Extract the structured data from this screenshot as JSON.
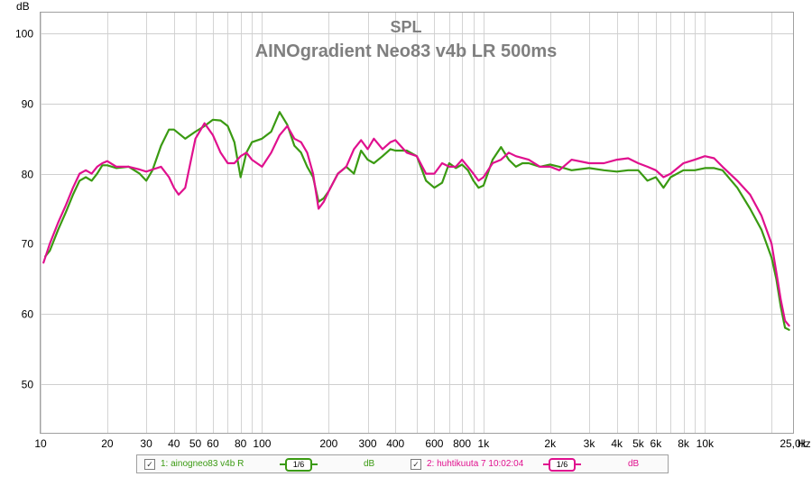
{
  "chart_data": {
    "type": "line",
    "title": "SPL",
    "subtitle": "AINOgradient Neo83 v4b LR 500ms",
    "ylabel": "dB",
    "xlabel": "Hz",
    "x_scale": "log",
    "xlim": [
      10,
      25000
    ],
    "ylim": [
      43,
      103
    ],
    "grid": true,
    "y_ticks": [
      50,
      60,
      70,
      80,
      90,
      100
    ],
    "x_ticks": [
      {
        "value": 10,
        "label": "10"
      },
      {
        "value": 20,
        "label": "20"
      },
      {
        "value": 30,
        "label": "30"
      },
      {
        "value": 40,
        "label": "40"
      },
      {
        "value": 50,
        "label": "50"
      },
      {
        "value": 60,
        "label": "60"
      },
      {
        "value": 80,
        "label": "80"
      },
      {
        "value": 100,
        "label": "100"
      },
      {
        "value": 200,
        "label": "200"
      },
      {
        "value": 300,
        "label": "300"
      },
      {
        "value": 400,
        "label": "400"
      },
      {
        "value": 600,
        "label": "600"
      },
      {
        "value": 800,
        "label": "800"
      },
      {
        "value": 1000,
        "label": "1k"
      },
      {
        "value": 2000,
        "label": "2k"
      },
      {
        "value": 3000,
        "label": "3k"
      },
      {
        "value": 4000,
        "label": "4k"
      },
      {
        "value": 5000,
        "label": "5k"
      },
      {
        "value": 6000,
        "label": "6k"
      },
      {
        "value": 8000,
        "label": "8k"
      },
      {
        "value": 10000,
        "label": "10k"
      },
      {
        "value": 25000,
        "label": "25,0k"
      }
    ],
    "series": [
      {
        "name": "1: ainogneo83 v4b R",
        "color": "#3a9a12",
        "points": [
          [
            10.5,
            68.2
          ],
          [
            11,
            69
          ],
          [
            12,
            72
          ],
          [
            13,
            74.5
          ],
          [
            14,
            77
          ],
          [
            15,
            79
          ],
          [
            16,
            79.5
          ],
          [
            17,
            79
          ],
          [
            18,
            80
          ],
          [
            19,
            81.2
          ],
          [
            20,
            81.2
          ],
          [
            22,
            80.8
          ],
          [
            25,
            81
          ],
          [
            28,
            80
          ],
          [
            30,
            79
          ],
          [
            32,
            80.5
          ],
          [
            35,
            84
          ],
          [
            38,
            86.3
          ],
          [
            40,
            86.3
          ],
          [
            45,
            85
          ],
          [
            50,
            86
          ],
          [
            55,
            86.8
          ],
          [
            60,
            87.7
          ],
          [
            65,
            87.6
          ],
          [
            70,
            86.8
          ],
          [
            75,
            84.5
          ],
          [
            80,
            79.5
          ],
          [
            85,
            83
          ],
          [
            90,
            84.5
          ],
          [
            100,
            85
          ],
          [
            110,
            86
          ],
          [
            120,
            88.8
          ],
          [
            130,
            87
          ],
          [
            140,
            84
          ],
          [
            150,
            83
          ],
          [
            160,
            81
          ],
          [
            170,
            79.5
          ],
          [
            180,
            76
          ],
          [
            190,
            76.5
          ],
          [
            200,
            77.5
          ],
          [
            220,
            80
          ],
          [
            240,
            81
          ],
          [
            260,
            80
          ],
          [
            280,
            83.3
          ],
          [
            300,
            82
          ],
          [
            320,
            81.5
          ],
          [
            350,
            82.5
          ],
          [
            380,
            83.5
          ],
          [
            400,
            83.3
          ],
          [
            450,
            83.3
          ],
          [
            500,
            82.5
          ],
          [
            550,
            79
          ],
          [
            600,
            78
          ],
          [
            650,
            78.7
          ],
          [
            700,
            81.5
          ],
          [
            750,
            80.8
          ],
          [
            800,
            81.3
          ],
          [
            850,
            80.5
          ],
          [
            900,
            79
          ],
          [
            950,
            78
          ],
          [
            1000,
            78.3
          ],
          [
            1100,
            82
          ],
          [
            1200,
            83.8
          ],
          [
            1300,
            82
          ],
          [
            1400,
            81
          ],
          [
            1500,
            81.5
          ],
          [
            1600,
            81.5
          ],
          [
            1800,
            81
          ],
          [
            2000,
            81.3
          ],
          [
            2200,
            81
          ],
          [
            2500,
            80.5
          ],
          [
            3000,
            80.8
          ],
          [
            3500,
            80.5
          ],
          [
            4000,
            80.3
          ],
          [
            4500,
            80.5
          ],
          [
            5000,
            80.5
          ],
          [
            5500,
            79
          ],
          [
            6000,
            79.5
          ],
          [
            6500,
            78
          ],
          [
            7000,
            79.5
          ],
          [
            8000,
            80.5
          ],
          [
            9000,
            80.5
          ],
          [
            10000,
            80.8
          ],
          [
            11000,
            80.8
          ],
          [
            12000,
            80.5
          ],
          [
            14000,
            78
          ],
          [
            16000,
            75
          ],
          [
            18000,
            72
          ],
          [
            20000,
            68
          ],
          [
            21000,
            65
          ],
          [
            22000,
            61
          ],
          [
            23000,
            58
          ],
          [
            24000,
            57.7
          ]
        ]
      },
      {
        "name": "2: huhtikuuta 7 10:02:04",
        "color": "#e0108e",
        "points": [
          [
            10.3,
            67.3
          ],
          [
            11,
            70
          ],
          [
            12,
            73
          ],
          [
            13,
            75.5
          ],
          [
            14,
            78
          ],
          [
            15,
            80
          ],
          [
            16,
            80.5
          ],
          [
            17,
            80
          ],
          [
            18,
            81
          ],
          [
            19,
            81.5
          ],
          [
            20,
            81.8
          ],
          [
            22,
            81
          ],
          [
            25,
            81
          ],
          [
            28,
            80.6
          ],
          [
            30,
            80.3
          ],
          [
            32,
            80.6
          ],
          [
            35,
            81
          ],
          [
            38,
            79.5
          ],
          [
            40,
            78
          ],
          [
            42,
            77
          ],
          [
            45,
            78
          ],
          [
            50,
            85
          ],
          [
            55,
            87.2
          ],
          [
            60,
            85.5
          ],
          [
            65,
            83
          ],
          [
            70,
            81.5
          ],
          [
            75,
            81.5
          ],
          [
            80,
            82.5
          ],
          [
            85,
            83
          ],
          [
            90,
            82
          ],
          [
            100,
            81
          ],
          [
            110,
            83
          ],
          [
            120,
            85.5
          ],
          [
            130,
            86.8
          ],
          [
            140,
            85
          ],
          [
            150,
            84.5
          ],
          [
            160,
            83
          ],
          [
            170,
            80
          ],
          [
            180,
            75
          ],
          [
            190,
            76
          ],
          [
            200,
            77.5
          ],
          [
            220,
            80
          ],
          [
            240,
            81
          ],
          [
            260,
            83.5
          ],
          [
            280,
            84.8
          ],
          [
            300,
            83.5
          ],
          [
            320,
            85
          ],
          [
            350,
            83.5
          ],
          [
            380,
            84.5
          ],
          [
            400,
            84.8
          ],
          [
            450,
            83
          ],
          [
            500,
            82.5
          ],
          [
            550,
            80
          ],
          [
            600,
            80
          ],
          [
            650,
            81.5
          ],
          [
            700,
            81
          ],
          [
            750,
            81
          ],
          [
            800,
            82
          ],
          [
            850,
            81
          ],
          [
            900,
            80
          ],
          [
            950,
            79
          ],
          [
            1000,
            79.5
          ],
          [
            1100,
            81.5
          ],
          [
            1200,
            82
          ],
          [
            1300,
            83
          ],
          [
            1400,
            82.5
          ],
          [
            1600,
            82
          ],
          [
            1800,
            81
          ],
          [
            2000,
            81
          ],
          [
            2200,
            80.5
          ],
          [
            2500,
            82
          ],
          [
            3000,
            81.5
          ],
          [
            3500,
            81.5
          ],
          [
            4000,
            82
          ],
          [
            4500,
            82.2
          ],
          [
            5000,
            81.5
          ],
          [
            5500,
            81
          ],
          [
            6000,
            80.5
          ],
          [
            6500,
            79.5
          ],
          [
            7000,
            80
          ],
          [
            8000,
            81.5
          ],
          [
            9000,
            82
          ],
          [
            10000,
            82.5
          ],
          [
            11000,
            82.2
          ],
          [
            12000,
            81
          ],
          [
            14000,
            79
          ],
          [
            16000,
            77
          ],
          [
            18000,
            74
          ],
          [
            20000,
            70
          ],
          [
            21000,
            66
          ],
          [
            22000,
            62
          ],
          [
            23000,
            59
          ],
          [
            24000,
            58.3
          ]
        ]
      }
    ]
  },
  "legend": {
    "item1": {
      "label": "1: ainogneo83 v4b R",
      "smoothing": "1/6",
      "unit": "dB",
      "checked": "✓"
    },
    "item2": {
      "label": "2: huhtikuuta 7 10:02:04",
      "smoothing": "1/6",
      "unit": "dB",
      "checked": "✓"
    }
  }
}
